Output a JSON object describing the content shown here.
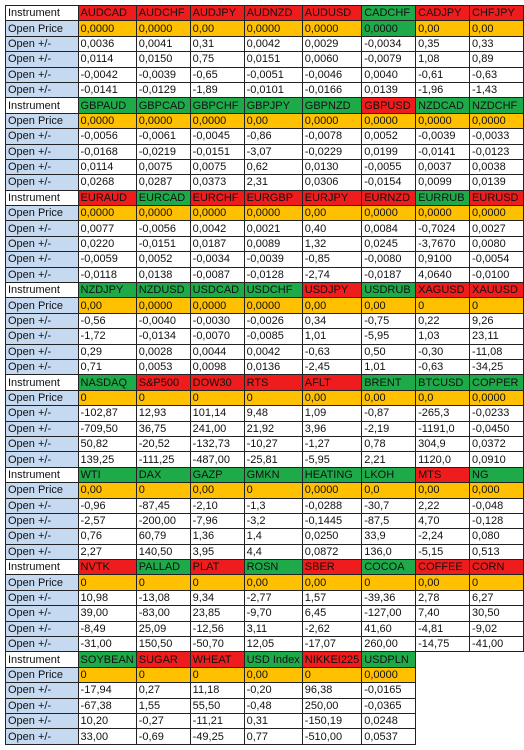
{
  "row_labels": {
    "instrument": "Instrument",
    "open_price": "Open Price",
    "change": "Open +/-"
  },
  "blocks": [
    {
      "instruments": [
        "AUDCAD",
        "AUDCHF",
        "AUDJPY",
        "AUDNZD",
        "AUDUSD",
        "CADCHF",
        "CADJPY",
        "CHFJPY"
      ],
      "colors": [
        "red",
        "red",
        "red",
        "red",
        "red",
        "green",
        "red",
        "red"
      ],
      "open_colors": [
        "orange",
        "orange",
        "orange",
        "orange",
        "orange",
        "green",
        "orange",
        "orange"
      ],
      "open_price": [
        "0,0000",
        "0,0000",
        "0,00",
        "0,0000",
        "0,0000",
        "0,0000",
        "0,00",
        "0,00"
      ],
      "changes": [
        [
          "0,0036",
          "0,0041",
          "0,31",
          "0,0042",
          "0,0029",
          "-0,0034",
          "0,35",
          "0,33"
        ],
        [
          "0,0114",
          "0,0150",
          "0,75",
          "0,0151",
          "0,0060",
          "-0,0079",
          "1,08",
          "0,89"
        ],
        [
          "-0,0042",
          "-0,0039",
          "-0,65",
          "-0,0051",
          "-0,0046",
          "0,0040",
          "-0,61",
          "-0,63"
        ],
        [
          "-0,0141",
          "-0,0129",
          "-1,89",
          "-0,0101",
          "-0,0166",
          "0,0139",
          "-1,96",
          "-1,43"
        ]
      ]
    },
    {
      "instruments": [
        "GBPAUD",
        "GBPCAD",
        "GBPCHF",
        "GBPJPY",
        "GBPNZD",
        "GBPUSD",
        "NZDCAD",
        "NZDCHF"
      ],
      "colors": [
        "green",
        "green",
        "green",
        "green",
        "green",
        "red",
        "green",
        "green"
      ],
      "open_colors": [
        "orange",
        "orange",
        "orange",
        "orange",
        "orange",
        "orange",
        "orange",
        "orange"
      ],
      "open_price": [
        "0,0000",
        "0,0000",
        "0,0000",
        "0,00",
        "0,0000",
        "0,0000",
        "0,0000",
        "0,0000"
      ],
      "changes": [
        [
          "-0,0056",
          "-0,0061",
          "-0,0045",
          "-0,86",
          "-0,0078",
          "0,0052",
          "-0,0039",
          "-0,0033"
        ],
        [
          "-0,0168",
          "-0,0219",
          "-0,0151",
          "-3,07",
          "-0,0229",
          "0,0199",
          "-0,0141",
          "-0,0123"
        ],
        [
          "0,0114",
          "0,0075",
          "0,0075",
          "0,62",
          "0,0130",
          "-0,0055",
          "0,0037",
          "0,0038"
        ],
        [
          "0,0268",
          "0,0287",
          "0,0373",
          "2,31",
          "0,0306",
          "-0,0154",
          "0,0099",
          "0,0139"
        ]
      ]
    },
    {
      "instruments": [
        "EURAUD",
        "EURCAD",
        "EURCHF",
        "EURGBP",
        "EURJPY",
        "EURNZD",
        "EURRUB",
        "EURUSD"
      ],
      "colors": [
        "red",
        "green",
        "red",
        "red",
        "red",
        "red",
        "green",
        "red"
      ],
      "open_colors": [
        "orange",
        "orange",
        "orange",
        "orange",
        "orange",
        "orange",
        "orange",
        "orange"
      ],
      "open_price": [
        "0,0000",
        "0,0000",
        "0,0000",
        "0,0000",
        "0,00",
        "0,0000",
        "0,0000",
        "0,0000"
      ],
      "changes": [
        [
          "0,0077",
          "-0,0056",
          "0,0042",
          "0,0021",
          "0,40",
          "0,0084",
          "-0,7024",
          "0,0027"
        ],
        [
          "0,0220",
          "-0,0151",
          "0,0187",
          "0,0089",
          "1,32",
          "0,0245",
          "-3,7670",
          "0,0080"
        ],
        [
          "-0,0059",
          "0,0052",
          "-0,0034",
          "-0,0039",
          "-0,85",
          "-0,0080",
          "0,9100",
          "-0,0054"
        ],
        [
          "-0,0118",
          "0,0138",
          "-0,0087",
          "-0,0128",
          "-2,74",
          "-0,0187",
          "4,0640",
          "-0,0100"
        ]
      ]
    },
    {
      "instruments": [
        "NZDJPY",
        "NZDUSD",
        "USDCAD",
        "USDCHF",
        "USDJPY",
        "USDRUB",
        "XAGUSD",
        "XAUUSD"
      ],
      "colors": [
        "green",
        "green",
        "green",
        "green",
        "red",
        "green",
        "red",
        "red"
      ],
      "open_colors": [
        "orange",
        "orange",
        "orange",
        "orange",
        "orange",
        "orange",
        "orange",
        "orange"
      ],
      "open_price": [
        "0,00",
        "0,0000",
        "0,0000",
        "0,0000",
        "0,00",
        "0,00",
        "0",
        "0"
      ],
      "changes": [
        [
          "-0,56",
          "-0,0040",
          "-0,0030",
          "-0,0026",
          "0,34",
          "-0,75",
          "0,22",
          "9,26"
        ],
        [
          "-1,72",
          "-0,0134",
          "-0,0070",
          "-0,0085",
          "1,01",
          "-5,95",
          "1,03",
          "23,11"
        ],
        [
          "0,29",
          "0,0028",
          "0,0044",
          "0,0042",
          "-0,63",
          "0,50",
          "-0,30",
          "-11,08"
        ],
        [
          "0,71",
          "0,0053",
          "0,0098",
          "0,0136",
          "-2,45",
          "1,01",
          "-0,63",
          "-34,25"
        ]
      ]
    },
    {
      "instruments": [
        "NASDAQ",
        "S&P500",
        "DOW30",
        "RTS",
        "AFLT",
        "BRENT",
        "BTCUSD",
        "COPPER"
      ],
      "colors": [
        "green",
        "red",
        "red",
        "red",
        "red",
        "green",
        "green",
        "green"
      ],
      "open_colors": [
        "orange",
        "orange",
        "orange",
        "orange",
        "orange",
        "orange",
        "orange",
        "orange"
      ],
      "open_price": [
        "0",
        "0",
        "0",
        "0",
        "0,00",
        "0,00",
        "0,0",
        "0,0000"
      ],
      "changes": [
        [
          "-102,87",
          "12,93",
          "101,14",
          "9,48",
          "1,09",
          "-0,87",
          "-265,3",
          "-0,0233"
        ],
        [
          "-709,50",
          "36,75",
          "241,00",
          "21,92",
          "3,96",
          "-2,19",
          "-1191,0",
          "-0,0450"
        ],
        [
          "50,82",
          "-20,52",
          "-132,73",
          "-10,27",
          "-1,27",
          "0,78",
          "304,9",
          "0,0372"
        ],
        [
          "139,25",
          "-111,25",
          "-487,00",
          "-25,81",
          "-5,95",
          "2,21",
          "1120,0",
          "0,0910"
        ]
      ]
    },
    {
      "instruments": [
        "WTI",
        "DAX",
        "GAZP",
        "GMKN",
        "HEATING",
        "LKOH",
        "MTS",
        "NG"
      ],
      "colors": [
        "green",
        "green",
        "green",
        "green",
        "green",
        "green",
        "red",
        "green"
      ],
      "open_colors": [
        "orange",
        "orange",
        "orange",
        "orange",
        "orange",
        "orange",
        "orange",
        "orange"
      ],
      "open_price": [
        "0,00",
        "0",
        "0,00",
        "0",
        "0,0000",
        "0,0",
        "0,00",
        "0,000"
      ],
      "changes": [
        [
          "-0,96",
          "-87,45",
          "-2,10",
          "-1,3",
          "-0,0288",
          "-30,7",
          "2,22",
          "-0,048"
        ],
        [
          "-2,57",
          "-200,00",
          "-7,96",
          "-3,2",
          "-0,1445",
          "-87,5",
          "4,70",
          "-0,128"
        ],
        [
          "0,76",
          "60,79",
          "1,36",
          "1,4",
          "0,0250",
          "33,9",
          "-2,24",
          "0,080"
        ],
        [
          "2,27",
          "140,50",
          "3,95",
          "4,4",
          "0,0872",
          "136,0",
          "-5,15",
          "0,513"
        ]
      ]
    },
    {
      "instruments": [
        "NVTK",
        "PALLAD",
        "PLAT",
        "ROSN",
        "SBER",
        "COCOA",
        "COFFEE",
        "CORN"
      ],
      "colors": [
        "red",
        "green",
        "red",
        "green",
        "red",
        "green",
        "red",
        "red"
      ],
      "open_colors": [
        "orange",
        "orange",
        "orange",
        "orange",
        "orange",
        "orange",
        "orange",
        "orange"
      ],
      "open_price": [
        "0",
        "0",
        "0",
        "0,00",
        "0,00",
        "0",
        "0,00",
        "0"
      ],
      "changes": [
        [
          "10,98",
          "-13,08",
          "9,34",
          "-2,77",
          "1,57",
          "-39,36",
          "2,78",
          "6,27"
        ],
        [
          "39,00",
          "-83,00",
          "23,85",
          "-9,70",
          "6,45",
          "-127,00",
          "7,40",
          "30,50"
        ],
        [
          "-8,49",
          "25,09",
          "-12,56",
          "3,11",
          "-2,62",
          "41,60",
          "-4,81",
          "-9,02"
        ],
        [
          "-31,00",
          "150,50",
          "-50,70",
          "12,05",
          "-17,07",
          "260,00",
          "-14,75",
          "-41,00"
        ]
      ]
    },
    {
      "instruments": [
        "SOYBEAN",
        "SUGAR",
        "WHEAT",
        "USD Index",
        "NIKKEI225",
        "USDPLN"
      ],
      "colors": [
        "green",
        "red",
        "red",
        "green",
        "red",
        "green"
      ],
      "open_colors": [
        "orange",
        "orange",
        "orange",
        "orange",
        "orange",
        "orange"
      ],
      "open_price": [
        "0",
        "0",
        "0",
        "0,00",
        "0",
        "0,0000"
      ],
      "changes": [
        [
          "-17,94",
          "0,27",
          "11,18",
          "-0,20",
          "96,38",
          "-0,0165"
        ],
        [
          "-67,38",
          "1,55",
          "55,50",
          "-0,48",
          "250,00",
          "-0,0365"
        ],
        [
          "10,20",
          "-0,27",
          "-11,21",
          "0,31",
          "-150,19",
          "0,0248"
        ],
        [
          "33,00",
          "-0,69",
          "-49,25",
          "0,77",
          "-510,00",
          "0,0537"
        ]
      ]
    }
  ]
}
